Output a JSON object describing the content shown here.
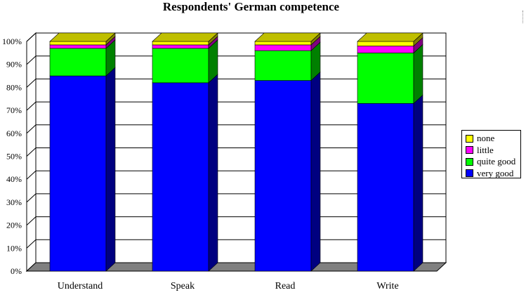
{
  "chart_data": {
    "type": "bar",
    "stacked": true,
    "style": "3d",
    "title": "Respondents' German competence",
    "categories": [
      "Understand",
      "Speak",
      "Read",
      "Write"
    ],
    "series": [
      {
        "name": "very good",
        "color": "#0000ff",
        "values": [
          85,
          82,
          83,
          73
        ]
      },
      {
        "name": "quite good",
        "color": "#00ff00",
        "values": [
          12,
          15,
          13,
          22
        ]
      },
      {
        "name": "little",
        "color": "#ff00ff",
        "values": [
          1.5,
          1.5,
          2.5,
          3
        ]
      },
      {
        "name": "none",
        "color": "#ffff00",
        "values": [
          1.5,
          1.5,
          1.5,
          2
        ]
      }
    ],
    "ylim": [
      0,
      100
    ],
    "yticks": [
      "0%",
      "10%",
      "20%",
      "30%",
      "40%",
      "50%",
      "60%",
      "70%",
      "80%",
      "90%",
      "100%"
    ],
    "grid": true,
    "legend_position": "right",
    "legend_order": [
      "none",
      "little",
      "quite good",
      "very good"
    ]
  }
}
